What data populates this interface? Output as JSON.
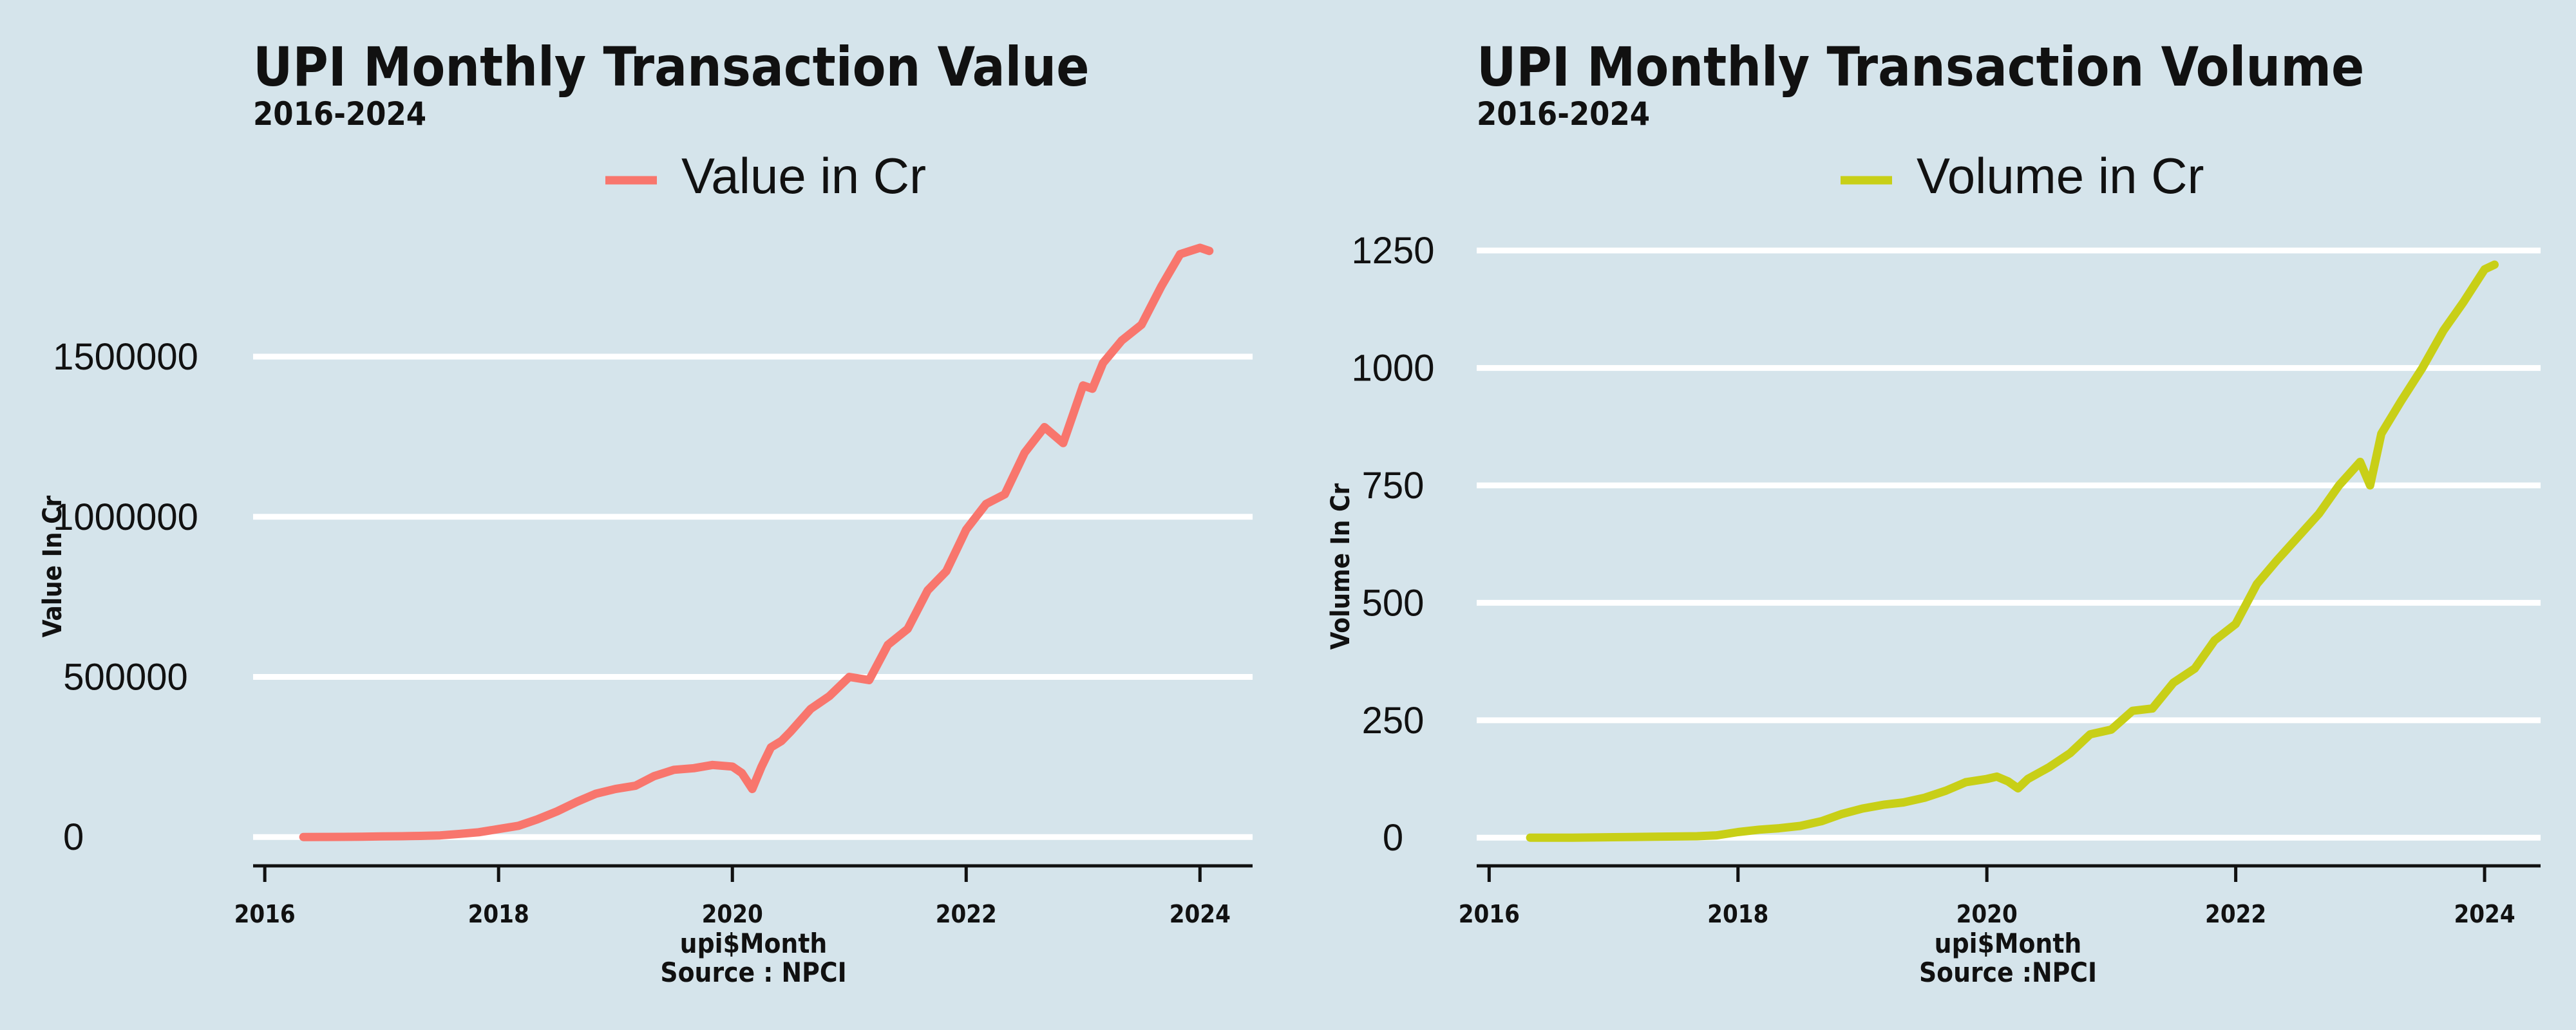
{
  "background_color": "#d5e4eb",
  "chart_data": [
    {
      "type": "line",
      "title": "UPI Monthly Transaction Value",
      "subtitle": "2016-2024",
      "xlabel": "upi$Month",
      "caption": "Source : NPCI",
      "ylabel": "Value In Cr",
      "series": [
        {
          "name": "Value in Cr",
          "color": "#f8766d",
          "x": [
            2016.33,
            2016.5,
            2016.67,
            2016.83,
            2017.0,
            2017.17,
            2017.33,
            2017.5,
            2017.67,
            2017.83,
            2018.0,
            2018.17,
            2018.33,
            2018.5,
            2018.67,
            2018.83,
            2019.0,
            2019.17,
            2019.33,
            2019.5,
            2019.67,
            2019.83,
            2020.0,
            2020.08,
            2020.17,
            2020.25,
            2020.33,
            2020.42,
            2020.5,
            2020.67,
            2020.83,
            2021.0,
            2021.17,
            2021.33,
            2021.5,
            2021.67,
            2021.83,
            2022.0,
            2022.17,
            2022.33,
            2022.5,
            2022.67,
            2022.83,
            2023.0,
            2023.08,
            2023.17,
            2023.33,
            2023.5,
            2023.67,
            2023.83,
            2024.0,
            2024.08
          ],
          "values": [
            0,
            200,
            500,
            1000,
            2000,
            2500,
            3500,
            5000,
            10000,
            15000,
            25000,
            35000,
            55000,
            80000,
            110000,
            135000,
            150000,
            160000,
            190000,
            210000,
            215000,
            225000,
            220000,
            200000,
            150000,
            220000,
            280000,
            300000,
            330000,
            400000,
            440000,
            500000,
            490000,
            600000,
            650000,
            770000,
            830000,
            960000,
            1040000,
            1070000,
            1200000,
            1280000,
            1230000,
            1410000,
            1400000,
            1480000,
            1550000,
            1600000,
            1720000,
            1820000,
            1840000,
            1830000
          ]
        }
      ],
      "x_ticks": [
        "2016",
        "2018",
        "2020",
        "2022",
        "2024"
      ],
      "x_tick_values": [
        2016,
        2018,
        2020,
        2022,
        2024
      ],
      "y_ticks": [
        "0",
        "500000",
        "1000000",
        "1500000"
      ],
      "y_tick_values": [
        0,
        500000,
        1000000,
        1500000
      ],
      "xlim": [
        2015.9,
        2024.45
      ],
      "ylim": [
        -90000,
        1890000
      ],
      "legend_position": "top",
      "grid": "horizontal"
    },
    {
      "type": "line",
      "title": "UPI Monthly Transaction Volume",
      "subtitle": "2016-2024",
      "xlabel": "upi$Month",
      "caption": "Source :NPCI",
      "ylabel": "Volume In Cr",
      "series": [
        {
          "name": "Volume in Cr",
          "color": "#c8cf17",
          "x": [
            2016.33,
            2016.67,
            2017.0,
            2017.33,
            2017.67,
            2017.83,
            2018.0,
            2018.17,
            2018.33,
            2018.5,
            2018.67,
            2018.83,
            2019.0,
            2019.17,
            2019.33,
            2019.5,
            2019.67,
            2019.83,
            2020.0,
            2020.08,
            2020.17,
            2020.25,
            2020.33,
            2020.5,
            2020.67,
            2020.83,
            2021.0,
            2021.17,
            2021.33,
            2021.5,
            2021.67,
            2021.83,
            2022.0,
            2022.17,
            2022.33,
            2022.5,
            2022.67,
            2022.83,
            2023.0,
            2023.08,
            2023.17,
            2023.33,
            2023.5,
            2023.67,
            2023.83,
            2024.0,
            2024.08
          ],
          "values": [
            0,
            0,
            1,
            2,
            3,
            5,
            12,
            17,
            20,
            25,
            35,
            50,
            62,
            70,
            75,
            85,
            100,
            118,
            125,
            130,
            120,
            105,
            125,
            150,
            180,
            220,
            230,
            270,
            275,
            330,
            360,
            420,
            455,
            540,
            590,
            640,
            690,
            750,
            800,
            750,
            860,
            930,
            1000,
            1080,
            1140,
            1210,
            1220
          ]
        }
      ],
      "x_ticks": [
        "2016",
        "2018",
        "2020",
        "2022",
        "2024"
      ],
      "x_tick_values": [
        2016,
        2018,
        2020,
        2022,
        2024
      ],
      "y_ticks": [
        "0",
        "250",
        "500",
        "750",
        "1000",
        "1250"
      ],
      "y_tick_values": [
        0,
        250,
        500,
        750,
        1000,
        1250
      ],
      "xlim": [
        2015.9,
        2024.45
      ],
      "ylim": [
        -60,
        1290
      ],
      "legend_position": "top",
      "grid": "horizontal"
    }
  ]
}
